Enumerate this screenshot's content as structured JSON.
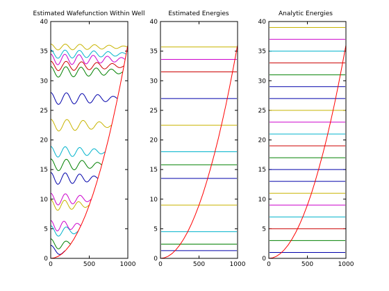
{
  "figure": {
    "background": "#ffffff"
  },
  "chart_data": [
    {
      "type": "line",
      "title": "Estimated Wafefunction Within Well",
      "xlim": [
        0,
        1000
      ],
      "ylim": [
        0,
        40
      ],
      "xticks": [
        0,
        500,
        1000
      ],
      "yticks": [
        0,
        5,
        10,
        15,
        20,
        25,
        30,
        35,
        40
      ],
      "grid": false,
      "potential": {
        "color": "#ff0000",
        "x": [
          0,
          50,
          100,
          150,
          200,
          250,
          300,
          350,
          400,
          450,
          500,
          550,
          600,
          650,
          700,
          750,
          800,
          850,
          900,
          950,
          1000
        ],
        "y": [
          0,
          0.09,
          0.36,
          0.81,
          1.44,
          2.25,
          3.24,
          4.41,
          5.76,
          7.29,
          9,
          10.89,
          12.96,
          15.21,
          17.64,
          20.25,
          23.04,
          26.01,
          29.16,
          32.49,
          36
        ]
      },
      "series": [
        {
          "color": "#0000aa",
          "energy": 1.3,
          "nodes": 1,
          "amplitude": 0.9
        },
        {
          "color": "#008000",
          "energy": 2.4,
          "nodes": 2,
          "amplitude": 0.9
        },
        {
          "color": "#00b3cc",
          "energy": 4.6,
          "nodes": 3,
          "amplitude": 0.9
        },
        {
          "color": "#cc00cc",
          "energy": 5.5,
          "nodes": 4,
          "amplitude": 0.9
        },
        {
          "color": "#c8b400",
          "energy": 9.0,
          "nodes": 5,
          "amplitude": 0.9
        },
        {
          "color": "#cc00cc",
          "energy": 10.0,
          "nodes": 5,
          "amplitude": 1.0
        },
        {
          "color": "#0000aa",
          "energy": 13.5,
          "nodes": 6,
          "amplitude": 1.0
        },
        {
          "color": "#008000",
          "energy": 15.8,
          "nodes": 6,
          "amplitude": 1.0
        },
        {
          "color": "#00b3cc",
          "energy": 18.0,
          "nodes": 7,
          "amplitude": 0.9
        },
        {
          "color": "#c8b400",
          "energy": 22.5,
          "nodes": 7,
          "amplitude": 1.0
        },
        {
          "color": "#0000aa",
          "energy": 27.0,
          "nodes": 8,
          "amplitude": 1.0
        },
        {
          "color": "#008000",
          "energy": 31.5,
          "nodes": 9,
          "amplitude": 0.9
        },
        {
          "color": "#cc0000",
          "energy": 32.5,
          "nodes": 9,
          "amplitude": 0.8
        },
        {
          "color": "#cc00cc",
          "energy": 33.6,
          "nodes": 10,
          "amplitude": 0.9
        },
        {
          "color": "#00b3cc",
          "energy": 34.5,
          "nodes": 10,
          "amplitude": 0.7
        },
        {
          "color": "#c8b400",
          "energy": 35.7,
          "nodes": 10,
          "amplitude": 0.5
        }
      ]
    },
    {
      "type": "line",
      "title": "Estimated Energies",
      "xlim": [
        0,
        1000
      ],
      "ylim": [
        0,
        40
      ],
      "xticks": [
        0,
        500,
        1000
      ],
      "yticks": [
        0,
        5,
        10,
        15,
        20,
        25,
        30,
        35,
        40
      ],
      "grid": false,
      "potential": {
        "color": "#ff0000",
        "x": [
          0,
          50,
          100,
          150,
          200,
          250,
          300,
          350,
          400,
          450,
          500,
          550,
          600,
          650,
          700,
          750,
          800,
          850,
          900,
          950,
          1000
        ],
        "y": [
          0,
          0.09,
          0.36,
          0.81,
          1.44,
          2.25,
          3.24,
          4.41,
          5.76,
          7.29,
          9,
          10.89,
          12.96,
          15.21,
          17.64,
          20.25,
          23.04,
          26.01,
          29.16,
          32.49,
          36
        ]
      },
      "levels": [
        {
          "y": 1.3,
          "color": "#0000aa"
        },
        {
          "y": 2.4,
          "color": "#008000"
        },
        {
          "y": 4.5,
          "color": "#00b3cc"
        },
        {
          "y": 9.0,
          "color": "#c8b400"
        },
        {
          "y": 13.5,
          "color": "#0000aa"
        },
        {
          "y": 15.8,
          "color": "#008000"
        },
        {
          "y": 18.0,
          "color": "#00b3cc"
        },
        {
          "y": 22.5,
          "color": "#c8b400"
        },
        {
          "y": 27.0,
          "color": "#0000aa"
        },
        {
          "y": 31.5,
          "color": "#cc0000"
        },
        {
          "y": 33.6,
          "color": "#cc00cc"
        },
        {
          "y": 35.7,
          "color": "#c8b400"
        }
      ]
    },
    {
      "type": "line",
      "title": "Analytic Energies",
      "xlim": [
        0,
        1000
      ],
      "ylim": [
        0,
        40
      ],
      "xticks": [
        0,
        500,
        1000
      ],
      "yticks": [
        0,
        5,
        10,
        15,
        20,
        25,
        30,
        35,
        40
      ],
      "grid": false,
      "potential": {
        "color": "#ff0000",
        "x": [
          0,
          50,
          100,
          150,
          200,
          250,
          300,
          350,
          400,
          450,
          500,
          550,
          600,
          650,
          700,
          750,
          800,
          850,
          900,
          950,
          1000
        ],
        "y": [
          0,
          0.09,
          0.36,
          0.81,
          1.44,
          2.25,
          3.24,
          4.41,
          5.76,
          7.29,
          9,
          10.89,
          12.96,
          15.21,
          17.64,
          20.25,
          23.04,
          26.01,
          29.16,
          32.49,
          36
        ]
      },
      "levels": [
        {
          "y": 1,
          "color": "#0000aa"
        },
        {
          "y": 3,
          "color": "#008000"
        },
        {
          "y": 5,
          "color": "#cc0000"
        },
        {
          "y": 7,
          "color": "#00b3cc"
        },
        {
          "y": 9,
          "color": "#cc00cc"
        },
        {
          "y": 11,
          "color": "#c8b400"
        },
        {
          "y": 13,
          "color": "#0000aa"
        },
        {
          "y": 15,
          "color": "#0000aa"
        },
        {
          "y": 17,
          "color": "#008000"
        },
        {
          "y": 19,
          "color": "#cc0000"
        },
        {
          "y": 21,
          "color": "#00b3cc"
        },
        {
          "y": 23,
          "color": "#cc00cc"
        },
        {
          "y": 25,
          "color": "#c8b400"
        },
        {
          "y": 27,
          "color": "#0000aa"
        },
        {
          "y": 29,
          "color": "#0000aa"
        },
        {
          "y": 31,
          "color": "#008000"
        },
        {
          "y": 33,
          "color": "#cc0000"
        },
        {
          "y": 35,
          "color": "#00b3cc"
        },
        {
          "y": 37,
          "color": "#cc00cc"
        },
        {
          "y": 39,
          "color": "#c8b400"
        }
      ]
    }
  ]
}
